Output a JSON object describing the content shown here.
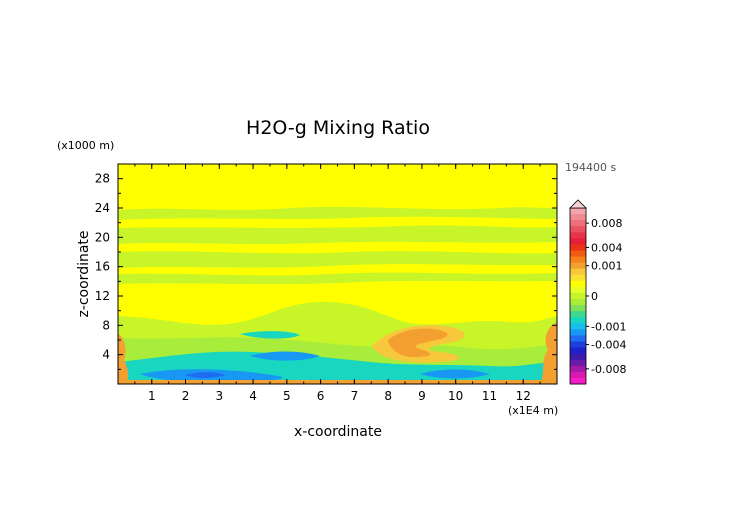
{
  "chart_data": {
    "type": "heatmap",
    "title": "H2O-g Mixing Ratio",
    "xlabel": "x-coordinate",
    "ylabel": "z-coordinate",
    "x_unit": "(x1E4 m)",
    "y_unit": "(x1000 m)",
    "time_label": "194400 s",
    "xlim": [
      0,
      13
    ],
    "ylim": [
      0,
      30
    ],
    "x_ticks": [
      1,
      2,
      3,
      4,
      5,
      6,
      7,
      8,
      9,
      10,
      11,
      12
    ],
    "y_ticks": [
      4,
      8,
      12,
      16,
      20,
      24,
      28
    ],
    "colorbar": {
      "levels": [
        {
          "value": 0.01,
          "color": "#f4a6ae"
        },
        {
          "value": 0.009,
          "color": "#f08b94"
        },
        {
          "value": 0.008,
          "color": "#ec6f7b"
        },
        {
          "value": 0.007,
          "color": "#e95060"
        },
        {
          "value": 0.006,
          "color": "#e7344b"
        },
        {
          "value": 0.005,
          "color": "#e61f36"
        },
        {
          "value": 0.004,
          "color": "#ea3318"
        },
        {
          "value": 0.003,
          "color": "#f05a12"
        },
        {
          "value": 0.002,
          "color": "#f4811a"
        },
        {
          "value": 0.001,
          "color": "#f4a030"
        },
        {
          "value": 0.0008,
          "color": "#f8c83c"
        },
        {
          "value": 0.0006,
          "color": "#fbe034"
        },
        {
          "value": 0.0004,
          "color": "#ffff00"
        },
        {
          "value": 0.0002,
          "color": "#e8ff2a"
        },
        {
          "value": 0,
          "color": "#c8f528"
        },
        {
          "value": -0.0002,
          "color": "#a8ec3c"
        },
        {
          "value": -0.0004,
          "color": "#7ee05a"
        },
        {
          "value": -0.0006,
          "color": "#40d890"
        },
        {
          "value": -0.0008,
          "color": "#19d6c0"
        },
        {
          "value": -0.001,
          "color": "#16c0ea"
        },
        {
          "value": -0.002,
          "color": "#1898f2"
        },
        {
          "value": -0.003,
          "color": "#1e6cf0"
        },
        {
          "value": -0.004,
          "color": "#1e3ee0"
        },
        {
          "value": -0.005,
          "color": "#1f22c8"
        },
        {
          "value": -0.006,
          "color": "#3c1ca8"
        },
        {
          "value": -0.007,
          "color": "#6a1ca8"
        },
        {
          "value": -0.008,
          "color": "#a41aa8"
        },
        {
          "value": -0.009,
          "color": "#d81ab0"
        },
        {
          "value": -0.01,
          "color": "#f41cc6"
        }
      ],
      "labels": [
        "0.008",
        "0.004",
        "0.001",
        "0",
        "-0.001",
        "-0.004",
        "-0.008"
      ]
    },
    "field_colors": {
      "upper_yellow": "#ffff00",
      "green": "#c8f528",
      "light_green": "#a8ec3c",
      "aqua": "#19d6c0",
      "blue": "#1898f2",
      "orange": "#f4a030",
      "light_orange": "#f8c83c"
    }
  }
}
